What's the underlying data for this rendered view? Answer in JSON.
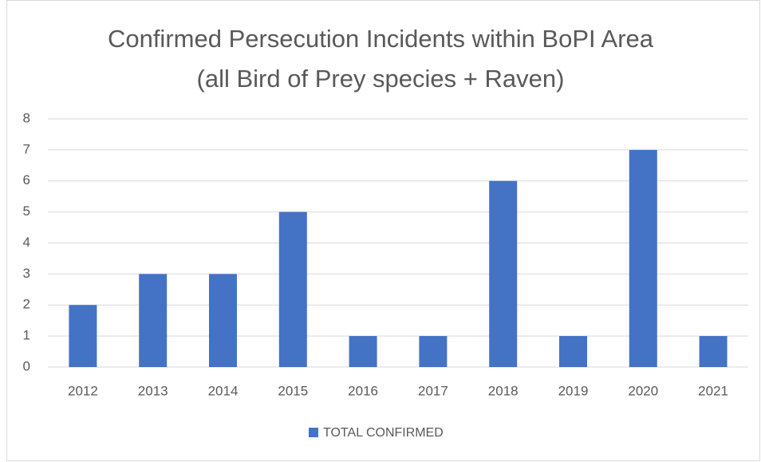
{
  "chart_data": {
    "type": "bar",
    "title": "Confirmed Persecution Incidents within BoPI Area (all Bird of Prey species + Raven)",
    "categories": [
      "2012",
      "2013",
      "2014",
      "2015",
      "2016",
      "2017",
      "2018",
      "2019",
      "2020",
      "2021"
    ],
    "series": [
      {
        "name": "TOTAL CONFIRMED",
        "color": "#4472c4",
        "values": [
          2,
          3,
          3,
          5,
          1,
          1,
          6,
          1,
          7,
          1
        ]
      }
    ],
    "ylim": [
      0,
      8
    ],
    "yticks": [
      0,
      1,
      2,
      3,
      4,
      5,
      6,
      7,
      8
    ],
    "grid": true,
    "legend": "bottom"
  }
}
